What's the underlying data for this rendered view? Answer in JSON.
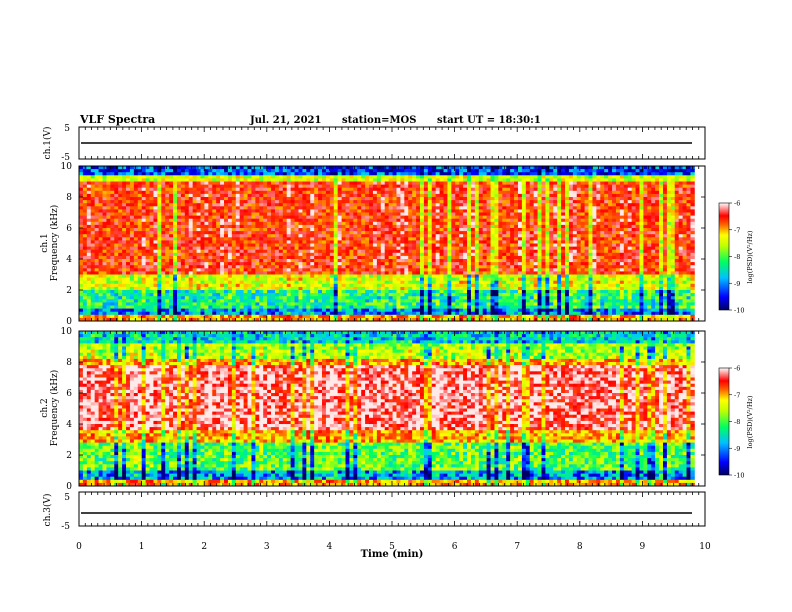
{
  "header": {
    "title": "VLF Spectra",
    "date": "Jul. 21, 2021",
    "station": "station=MOS",
    "start_ut": "start UT = 18:30:1"
  },
  "chart_data": [
    {
      "type": "line",
      "name": "ch1-waveform",
      "ylabel": "ch.1(V)",
      "ylim": [
        -5,
        5
      ],
      "y_ticks": [
        "5",
        "-5"
      ],
      "xlim": [
        0,
        10
      ],
      "baseline": 0
    },
    {
      "type": "heatmap",
      "name": "ch1-spectrogram",
      "ylabel_line1": "ch.1",
      "ylabel_line2": "Frequency (kHz)",
      "ylim": [
        0,
        10
      ],
      "y_ticks": [
        "0",
        "2",
        "4",
        "6",
        "8",
        "10"
      ],
      "xlim": [
        0,
        10
      ],
      "colorbar": {
        "label": "log(PSD)(V²/Hz)",
        "range": [
          -10,
          -6
        ],
        "ticks": [
          "-6",
          "-7",
          "-8",
          "-9",
          "-10"
        ]
      }
    },
    {
      "type": "heatmap",
      "name": "ch2-spectrogram",
      "ylabel_line1": "ch.2",
      "ylabel_line2": "Frequency (kHz)",
      "ylim": [
        0,
        10
      ],
      "y_ticks": [
        "0",
        "2",
        "4",
        "6",
        "8",
        "10"
      ],
      "xlim": [
        0,
        10
      ],
      "colorbar": {
        "label": "log(PSD)(V²/Hz)",
        "range": [
          -10,
          -6
        ],
        "ticks": [
          "-6",
          "-7",
          "-8",
          "-9",
          "-10"
        ]
      }
    },
    {
      "type": "line",
      "name": "ch3-waveform",
      "ylabel": "ch.3(V)",
      "ylim": [
        -5,
        5
      ],
      "y_ticks": [
        "5",
        "-5"
      ],
      "xlim": [
        0,
        10
      ],
      "baseline": 0
    }
  ],
  "x_axis": {
    "label": "Time (min)",
    "ticks": [
      "0",
      "1",
      "2",
      "3",
      "4",
      "5",
      "6",
      "7",
      "8",
      "9",
      "10"
    ]
  },
  "colors": {
    "colormap": [
      "#000080",
      "#0000ff",
      "#00c0ff",
      "#00ff80",
      "#c0ff00",
      "#ffff00",
      "#ff0000",
      "#ffffff"
    ]
  }
}
